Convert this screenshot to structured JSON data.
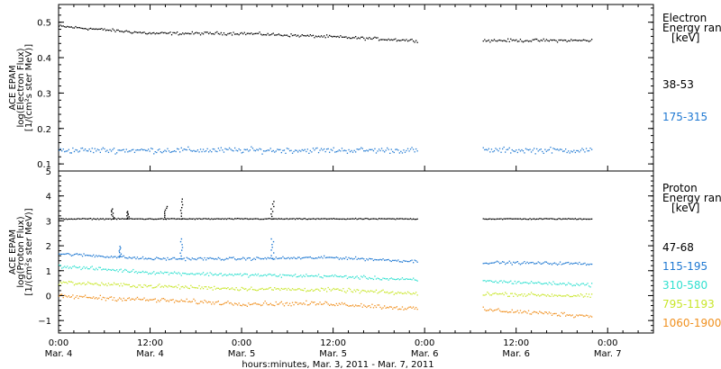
{
  "chart_data": [
    {
      "type": "scatter",
      "title": "",
      "ylabel": "ACE EPAM\nlog(Electron Flux)\n[1/(cm²s ster MeV)]",
      "ylim": [
        0.08,
        0.55
      ],
      "yticks": [
        0.1,
        0.2,
        0.3,
        0.4,
        0.5
      ],
      "ytick_labels": [
        "0.1",
        "0.2",
        "0.3",
        "0.4",
        "0.5"
      ],
      "legend_title": [
        "Electron",
        "Energy ranges",
        "[keV]"
      ],
      "gap": [
        "Mar. 5 23:00",
        "Mar. 6 07:30"
      ],
      "series": [
        {
          "name": "38-53",
          "color": "#000000",
          "x": [
            "Mar. 4 00:00",
            "Mar. 4 12:00",
            "Mar. 5 00:00",
            "Mar. 5 12:00",
            "Mar. 5 22:30",
            "Mar. 6 08:00",
            "Mar. 6 22:00"
          ],
          "y": [
            0.49,
            0.47,
            0.47,
            0.46,
            0.45,
            0.45,
            0.45
          ]
        },
        {
          "name": "175-315",
          "color": "#1e78d2",
          "x": [
            "Mar. 4 00:00",
            "Mar. 4 12:00",
            "Mar. 5 00:00",
            "Mar. 5 12:00",
            "Mar. 5 22:30",
            "Mar. 6 08:00",
            "Mar. 6 22:00"
          ],
          "y": [
            0.14,
            0.14,
            0.14,
            0.14,
            0.14,
            0.14,
            0.14
          ]
        }
      ]
    },
    {
      "type": "scatter",
      "title": "",
      "ylabel": "ACE EPAM\nlog(Proton Flux)\n[1/(cm²s ster MeV)]",
      "ylim": [
        -1.5,
        5
      ],
      "yticks": [
        -1,
        0,
        1,
        2,
        3,
        4,
        5
      ],
      "ytick_labels": [
        "−1",
        "0",
        "1",
        "2",
        "3",
        "4",
        "5"
      ],
      "legend_title": [
        "Proton",
        "Energy ranges",
        "[keV]"
      ],
      "gap": [
        "Mar. 5 23:00",
        "Mar. 6 07:30"
      ],
      "series": [
        {
          "name": "47-68",
          "color": "#000000",
          "x": [
            "Mar. 4 00:00",
            "Mar. 4 12:00",
            "Mar. 5 00:00",
            "Mar. 5 12:00",
            "Mar. 5 22:30",
            "Mar. 6 08:00",
            "Mar. 6 22:00"
          ],
          "y": [
            3.1,
            3.1,
            3.1,
            3.1,
            3.1,
            3.1,
            3.1
          ]
        },
        {
          "name": "115-195",
          "color": "#1e78d2",
          "x": [
            "Mar. 4 00:00",
            "Mar. 4 12:00",
            "Mar. 5 00:00",
            "Mar. 5 12:00",
            "Mar. 5 22:30",
            "Mar. 6 08:00",
            "Mar. 6 22:00"
          ],
          "y": [
            1.7,
            1.5,
            1.5,
            1.55,
            1.4,
            1.35,
            1.3
          ]
        },
        {
          "name": "310-580",
          "color": "#30e0d0",
          "x": [
            "Mar. 4 00:00",
            "Mar. 4 12:00",
            "Mar. 5 00:00",
            "Mar. 5 12:00",
            "Mar. 5 22:30",
            "Mar. 6 08:00",
            "Mar. 6 22:00"
          ],
          "y": [
            1.2,
            0.95,
            0.85,
            0.8,
            0.65,
            0.6,
            0.45
          ]
        },
        {
          "name": "795-1193",
          "color": "#c8e628",
          "x": [
            "Mar. 4 00:00",
            "Mar. 4 12:00",
            "Mar. 5 00:00",
            "Mar. 5 12:00",
            "Mar. 5 22:30",
            "Mar. 6 08:00",
            "Mar. 6 22:00"
          ],
          "y": [
            0.55,
            0.4,
            0.3,
            0.25,
            0.1,
            0.1,
            0.0
          ]
        },
        {
          "name": "1060-1900",
          "color": "#f0901e",
          "x": [
            "Mar. 4 00:00",
            "Mar. 4 12:00",
            "Mar. 5 00:00",
            "Mar. 5 12:00",
            "Mar. 5 22:30",
            "Mar. 6 08:00",
            "Mar. 6 22:00"
          ],
          "y": [
            0.0,
            -0.15,
            -0.3,
            -0.3,
            -0.5,
            -0.55,
            -0.8
          ]
        }
      ],
      "spikes": [
        {
          "x": "Mar. 4 07:00",
          "series": "47-68",
          "y": 3.5
        },
        {
          "x": "Mar. 4 09:00",
          "series": "47-68",
          "y": 3.4
        },
        {
          "x": "Mar. 4 14:00",
          "series": "47-68",
          "y": 3.6
        },
        {
          "x": "Mar. 4 16:00",
          "series": "47-68",
          "y": 3.9
        },
        {
          "x": "Mar. 5 04:00",
          "series": "47-68",
          "y": 3.8
        },
        {
          "x": "Mar. 4 16:00",
          "series": "115-195",
          "y": 2.3
        },
        {
          "x": "Mar. 4 08:00",
          "series": "115-195",
          "y": 2.0
        },
        {
          "x": "Mar. 5 04:00",
          "series": "115-195",
          "y": 2.3
        }
      ]
    }
  ],
  "x_axis": {
    "range": [
      "Mar. 4 00:00",
      "Mar. 7 06:00"
    ],
    "ticks": [
      {
        "time": "0:00",
        "date": "Mar. 4"
      },
      {
        "time": "12:00",
        "date": "Mar. 4"
      },
      {
        "time": "0:00",
        "date": "Mar. 5"
      },
      {
        "time": "12:00",
        "date": "Mar. 5"
      },
      {
        "time": "0:00",
        "date": "Mar. 6"
      },
      {
        "time": "12:00",
        "date": "Mar. 6"
      },
      {
        "time": "0:00",
        "date": "Mar. 7"
      }
    ],
    "title": "hours:minutes, Mar.  3, 2011 - Mar.  7, 2011"
  }
}
